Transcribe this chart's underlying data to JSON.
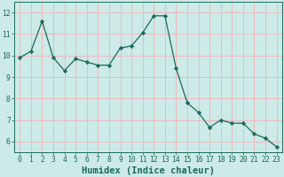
{
  "xlabel": "Humidex (Indice chaleur)",
  "x": [
    0,
    1,
    2,
    3,
    4,
    5,
    6,
    7,
    8,
    9,
    10,
    11,
    12,
    13,
    14,
    15,
    16,
    17,
    18,
    19,
    20,
    21,
    22,
    23
  ],
  "y": [
    9.9,
    10.2,
    11.6,
    9.9,
    9.3,
    9.85,
    9.7,
    9.55,
    9.55,
    10.35,
    10.45,
    11.05,
    11.85,
    11.85,
    9.4,
    7.8,
    7.35,
    6.65,
    7.0,
    6.85,
    6.85,
    6.35,
    6.15,
    5.75
  ],
  "line_color": "#1a6b5a",
  "marker": "D",
  "marker_size": 2.2,
  "bg_color": "#cceae7",
  "grid_color": "#f0b8b8",
  "ylim": [
    5.5,
    12.5
  ],
  "xlim": [
    -0.5,
    23.5
  ],
  "yticks": [
    6,
    7,
    8,
    9,
    10,
    11,
    12
  ],
  "xticks": [
    0,
    1,
    2,
    3,
    4,
    5,
    6,
    7,
    8,
    9,
    10,
    11,
    12,
    13,
    14,
    15,
    16,
    17,
    18,
    19,
    20,
    21,
    22,
    23
  ],
  "tick_label_fontsize": 5.8,
  "xlabel_fontsize": 7.5,
  "tick_color": "#1a6b5a",
  "label_color": "#1a6b5a",
  "linewidth": 0.9
}
